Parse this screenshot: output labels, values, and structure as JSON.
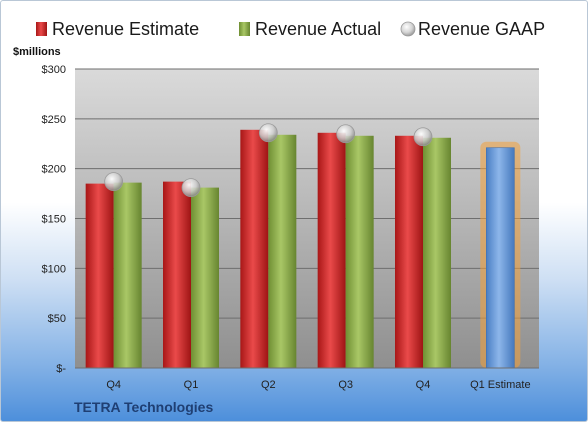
{
  "company": "TETRA Technologies",
  "chart_data": {
    "type": "bar",
    "categories": [
      "Q4",
      "Q1",
      "Q2",
      "Q3",
      "Q4",
      "Q1 Estimate"
    ],
    "series": [
      {
        "name": "Revenue Estimate",
        "values": [
          185,
          187,
          239,
          236,
          233,
          null
        ],
        "color": "#d92b2b"
      },
      {
        "name": "Revenue Actual",
        "values": [
          186,
          181,
          234,
          233,
          231,
          null
        ],
        "color": "#8fb04b"
      },
      {
        "name": "Revenue GAAP",
        "type": "scatter",
        "values": [
          187,
          181,
          236,
          235,
          232,
          null
        ],
        "color": "#c8c8c8"
      },
      {
        "name": "Q1 Estimate",
        "values": [
          null,
          null,
          null,
          null,
          null,
          221
        ],
        "color": "#6fa0dc",
        "highlight": "#f2a13a"
      }
    ],
    "ylabel": "$millions",
    "ylim": [
      0,
      300
    ],
    "y_ticks": [
      0,
      50,
      100,
      150,
      200,
      250,
      300
    ],
    "y_tick_labels": [
      "$-",
      "$50",
      "$100",
      "$150",
      "$200",
      "$250",
      "$300"
    ],
    "legend_position": "top",
    "grid": true
  }
}
